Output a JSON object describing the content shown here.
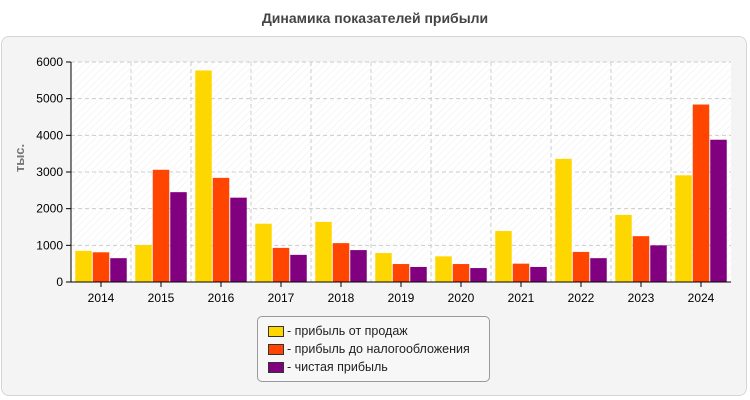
{
  "page": {
    "title": "Динамика показателей прибыли"
  },
  "chart_data": {
    "type": "bar",
    "title": "Динамика показателей прибыли",
    "xlabel": "",
    "ylabel": "тыс.",
    "ylim": [
      0,
      6000
    ],
    "yticks": [
      0,
      1000,
      2000,
      3000,
      4000,
      5000,
      6000
    ],
    "grid": true,
    "legend_position": "bottom",
    "categories": [
      "2014",
      "2015",
      "2016",
      "2017",
      "2018",
      "2019",
      "2020",
      "2021",
      "2022",
      "2023",
      "2024"
    ],
    "series": [
      {
        "name": "- прибыль от продаж",
        "color": "#FFD700",
        "values": [
          850,
          1010,
          5770,
          1590,
          1640,
          790,
          700,
          1390,
          3360,
          1830,
          2910
        ]
      },
      {
        "name": "- прибыль до налогообложения",
        "color": "#FF4500",
        "values": [
          810,
          3060,
          2840,
          930,
          1060,
          490,
          490,
          500,
          820,
          1250,
          4840
        ]
      },
      {
        "name": "- чистая прибыль",
        "color": "#800080",
        "values": [
          650,
          2450,
          2300,
          740,
          870,
          410,
          380,
          410,
          650,
          1000,
          3880
        ]
      }
    ]
  }
}
